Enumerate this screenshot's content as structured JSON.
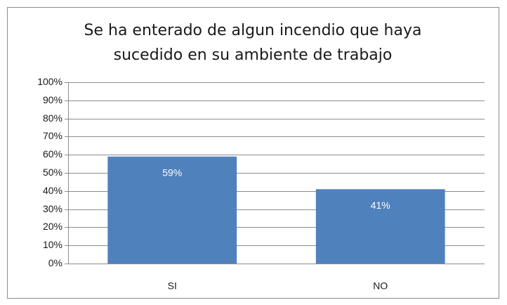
{
  "chart_data": {
    "type": "bar",
    "title": "Se ha enterado de algun incendio que haya sucedido en su ambiente de trabajo",
    "categories": [
      "SI",
      "NO"
    ],
    "values": [
      59,
      41
    ],
    "value_labels": [
      "59%",
      "41%"
    ],
    "color": "#4f81bd",
    "ylim": [
      0,
      100
    ],
    "yticks": [
      {
        "value": 0,
        "label": "0%"
      },
      {
        "value": 10,
        "label": "10%"
      },
      {
        "value": 20,
        "label": "20%"
      },
      {
        "value": 30,
        "label": "30%"
      },
      {
        "value": 40,
        "label": "40%"
      },
      {
        "value": 50,
        "label": "50%"
      },
      {
        "value": 60,
        "label": "60%"
      },
      {
        "value": 70,
        "label": "70%"
      },
      {
        "value": 80,
        "label": "80%"
      },
      {
        "value": 90,
        "label": "90%"
      },
      {
        "value": 100,
        "label": "100%"
      }
    ],
    "grid": true
  }
}
